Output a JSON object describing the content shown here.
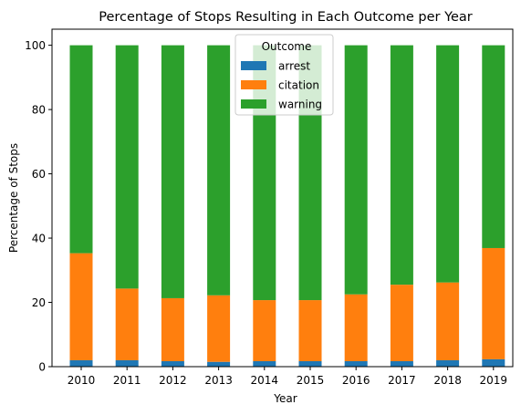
{
  "chart_data": {
    "type": "bar",
    "stacked": true,
    "title": "Percentage of Stops Resulting in Each Outcome per Year",
    "xlabel": "Year",
    "ylabel": "Percentage of Stops",
    "ylim": [
      0,
      105
    ],
    "yticks": [
      0,
      20,
      40,
      60,
      80,
      100
    ],
    "grid": false,
    "categories": [
      "2010",
      "2011",
      "2012",
      "2013",
      "2014",
      "2015",
      "2016",
      "2017",
      "2018",
      "2019"
    ],
    "legend": {
      "title": "Outcome",
      "placement": "top-center"
    },
    "series": [
      {
        "name": "arrest",
        "color": "#1f77b4",
        "values": [
          2.0,
          2.0,
          1.7,
          1.5,
          1.7,
          1.7,
          1.7,
          1.7,
          2.0,
          2.3
        ]
      },
      {
        "name": "citation",
        "color": "#ff7f0e",
        "values": [
          33.3,
          22.3,
          19.6,
          20.7,
          19.0,
          19.0,
          20.8,
          23.8,
          24.2,
          34.6
        ]
      },
      {
        "name": "warning",
        "color": "#2ca02c",
        "values": [
          64.7,
          75.7,
          78.7,
          77.8,
          79.3,
          79.3,
          77.5,
          74.5,
          73.8,
          63.1
        ]
      }
    ]
  }
}
